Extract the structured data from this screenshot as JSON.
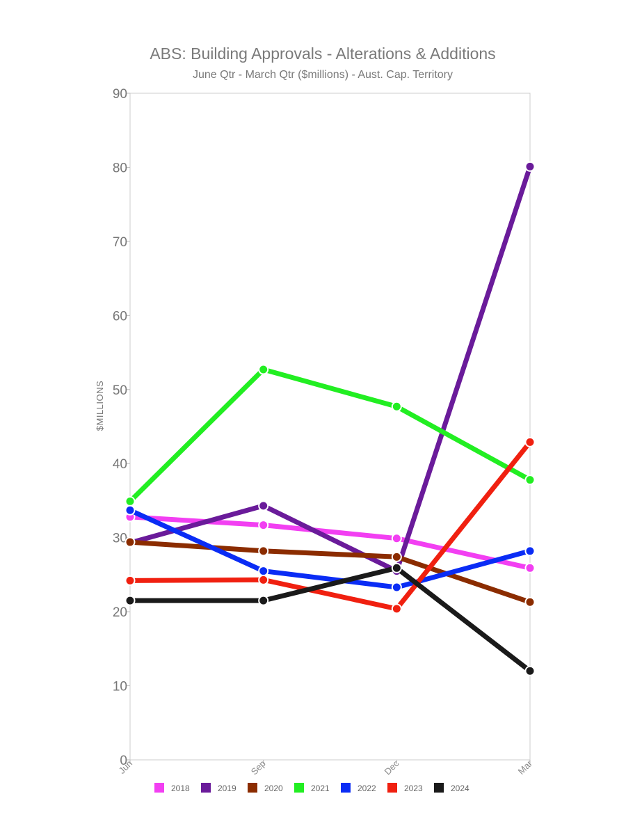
{
  "chart_data": {
    "type": "line",
    "title": "ABS: Building Approvals - Alterations & Additions",
    "subtitle": "June Qtr - March Qtr ($millions) - Aust. Cap. Territory",
    "ylabel": "$MILLIONS",
    "xlabel": "",
    "categories": [
      "Jun",
      "Sep",
      "Dec",
      "Mar"
    ],
    "ylim": [
      0,
      90
    ],
    "yticks": [
      0,
      10,
      20,
      30,
      40,
      50,
      60,
      70,
      80,
      90
    ],
    "grid": false,
    "legend_position": "bottom",
    "series": [
      {
        "name": "2018",
        "color": "#f23ff2",
        "values": [
          32.8,
          31.7,
          29.9,
          25.9
        ]
      },
      {
        "name": "2019",
        "color": "#6a1b9a",
        "values": [
          29.3,
          34.3,
          25.5,
          80.1
        ]
      },
      {
        "name": "2020",
        "color": "#8b2c00",
        "values": [
          29.4,
          28.2,
          27.4,
          21.3
        ]
      },
      {
        "name": "2021",
        "color": "#22ee22",
        "values": [
          34.9,
          52.7,
          47.7,
          37.8
        ]
      },
      {
        "name": "2022",
        "color": "#0a2cf5",
        "values": [
          33.7,
          25.5,
          23.3,
          28.2
        ]
      },
      {
        "name": "2023",
        "color": "#f02010",
        "values": [
          24.2,
          24.3,
          20.4,
          42.9
        ]
      },
      {
        "name": "2024",
        "color": "#1a1a1a",
        "values": [
          21.5,
          21.5,
          25.9,
          12.0
        ]
      }
    ]
  }
}
